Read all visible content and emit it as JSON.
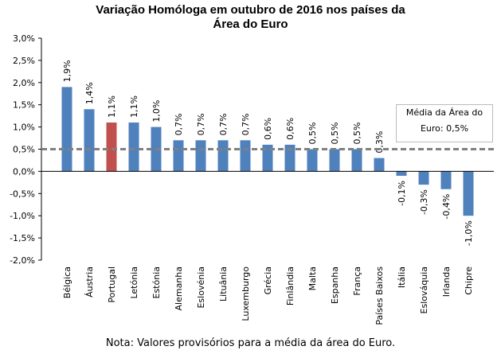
{
  "chart_data": {
    "type": "bar",
    "title": "Variação Homóloga em outubro de 2016 nos países da",
    "title_line2": "Área do Euro",
    "categories": [
      "Bélgica",
      "Áustria",
      "Portugal",
      "Letónia",
      "Estónia",
      "Alemanha",
      "Eslovénia",
      "Lituânia",
      "Luxemburgo",
      "Grécia",
      "Finlândia",
      "Malta",
      "Espanha",
      "França",
      "Países Baixos",
      "Itália",
      "Eslováquia",
      "Irlanda",
      "Chipre"
    ],
    "values": [
      1.9,
      1.4,
      1.1,
      1.1,
      1.0,
      0.7,
      0.7,
      0.7,
      0.7,
      0.6,
      0.6,
      0.5,
      0.5,
      0.5,
      0.3,
      -0.1,
      -0.3,
      -0.4,
      -1.0
    ],
    "data_labels": [
      "1,9%",
      "1,4%",
      "1,1%",
      "1,1%",
      "1,0%",
      "0,7%",
      "0,7%",
      "0,7%",
      "0,7%",
      "0,6%",
      "0,6%",
      "0,5%",
      "0,5%",
      "0,5%",
      "0,3%",
      "-0,1%",
      "-0,3%",
      "-0,4%",
      "-1,0%"
    ],
    "highlight_category": "Portugal",
    "colors": {
      "bar": "#4f81bd",
      "highlight": "#c0504d",
      "average_line": "#808080"
    },
    "ylim": [
      -2.0,
      3.0
    ],
    "yticks": [
      3.0,
      2.5,
      2.0,
      1.5,
      1.0,
      0.5,
      0.0,
      -0.5,
      -1.0,
      -1.5,
      -2.0
    ],
    "ytick_labels": [
      "3,0%",
      "2,5%",
      "2,0%",
      "1,5%",
      "1,0%",
      "0,5%",
      "0,0%",
      "-0,5%",
      "-1,0%",
      "-1,5%",
      "-2,0%"
    ],
    "average": {
      "value": 0.5,
      "label_line1": "Média da Área  do",
      "label_line2": "Euro: 0,5%"
    },
    "legend_placement": "right",
    "grid": false,
    "xlabel": "",
    "ylabel": ""
  },
  "note": "Nota: Valores provisórios para a média da área do Euro."
}
